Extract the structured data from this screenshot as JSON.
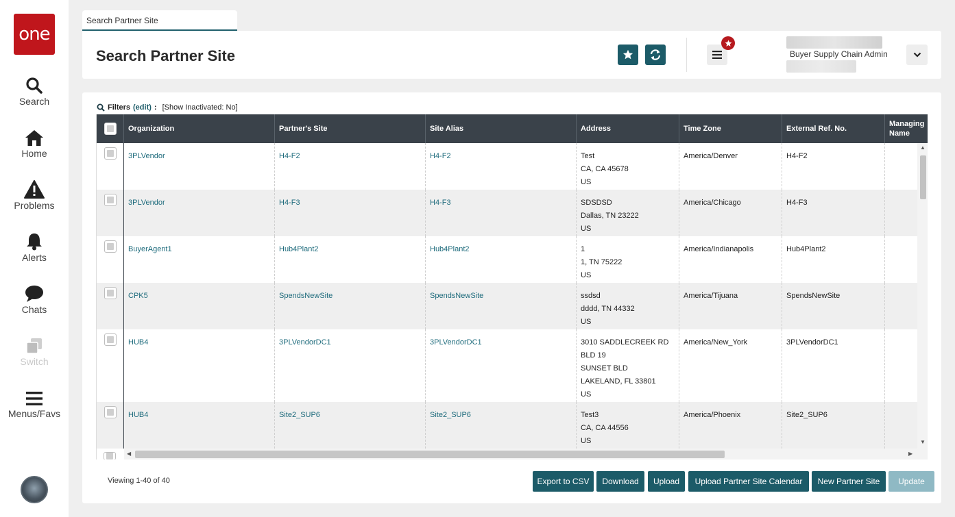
{
  "app": {
    "logo_text": "one"
  },
  "sidebar": {
    "items": [
      {
        "label": "Search",
        "icon": "search-icon"
      },
      {
        "label": "Home",
        "icon": "home-icon"
      },
      {
        "label": "Problems",
        "icon": "warning-icon"
      },
      {
        "label": "Alerts",
        "icon": "bell-icon"
      },
      {
        "label": "Chats",
        "icon": "chat-icon"
      },
      {
        "label": "Switch",
        "icon": "switch-icon",
        "disabled": true
      },
      {
        "label": "Menus/Favs",
        "icon": "menu-icon"
      }
    ]
  },
  "tab": {
    "label": "Search Partner Site"
  },
  "header": {
    "title": "Search Partner Site",
    "user_role": "Buyer Supply Chain Admin"
  },
  "filters": {
    "label": "Filters",
    "edit": "(edit)",
    "colon": ":",
    "value": "[Show Inactivated: No]"
  },
  "table": {
    "columns": [
      "Organization",
      "Partner's Site",
      "Site Alias",
      "Address",
      "Time Zone",
      "External Ref. No.",
      "Managing Name"
    ],
    "rows": [
      {
        "organization": "3PLVendor",
        "partner_site": "H4-F2",
        "site_alias": "H4-F2",
        "address": [
          "Test",
          "CA, CA 45678",
          "US"
        ],
        "time_zone": "America/Denver",
        "ext_ref": "H4-F2"
      },
      {
        "organization": "3PLVendor",
        "partner_site": "H4-F3",
        "site_alias": "H4-F3",
        "address": [
          "SDSDSD",
          "Dallas, TN 23222",
          "US"
        ],
        "time_zone": "America/Chicago",
        "ext_ref": "H4-F3"
      },
      {
        "organization": "BuyerAgent1",
        "partner_site": "Hub4Plant2",
        "site_alias": "Hub4Plant2",
        "address": [
          "1",
          "1, TN 75222",
          "US"
        ],
        "time_zone": "America/Indianapolis",
        "ext_ref": "Hub4Plant2"
      },
      {
        "organization": "CPK5",
        "partner_site": "SpendsNewSite",
        "site_alias": "SpendsNewSite",
        "address": [
          "ssdsd",
          "dddd, TN 44332",
          "US"
        ],
        "time_zone": "America/Tijuana",
        "ext_ref": "SpendsNewSite"
      },
      {
        "organization": "HUB4",
        "partner_site": "3PLVendorDC1",
        "site_alias": "3PLVendorDC1",
        "address": [
          "3010 SADDLECREEK RD",
          "BLD 19",
          "SUNSET BLD",
          "LAKELAND, FL 33801",
          "US"
        ],
        "time_zone": "America/New_York",
        "ext_ref": "3PLVendorDC1"
      },
      {
        "organization": "HUB4",
        "partner_site": "Site2_SUP6",
        "site_alias": "Site2_SUP6",
        "address": [
          "Test3",
          "CA, CA 44556",
          "US"
        ],
        "time_zone": "America/Phoenix",
        "ext_ref": "Site2_SUP6"
      }
    ]
  },
  "footer": {
    "viewing": "Viewing 1-40 of 40",
    "buttons": {
      "export_csv": "Export to CSV",
      "download": "Download",
      "upload": "Upload",
      "upload_calendar": "Upload Partner Site Calendar",
      "new_partner_site": "New Partner Site",
      "update": "Update"
    }
  },
  "colors": {
    "brand_red": "#c0161c",
    "primary_teal": "#1c5b68",
    "header_dark": "#3a424a",
    "link": "#1e6b7c"
  }
}
